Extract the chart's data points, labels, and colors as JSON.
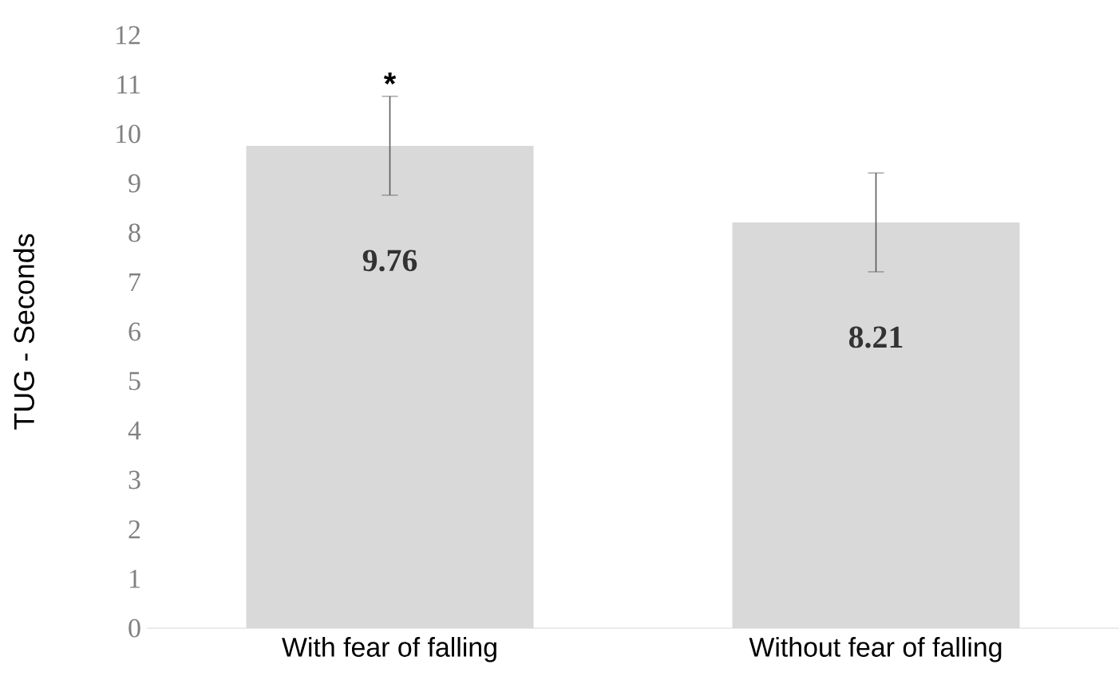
{
  "chart_data": {
    "type": "bar",
    "ylabel": "TUG - Seconds",
    "categories": [
      "With fear of falling",
      "Without fear of falling"
    ],
    "values": [
      9.76,
      8.21
    ],
    "color": "#d9d9d9",
    "errors": [
      1.0,
      1.0
    ],
    "value_labels": [
      "9.76",
      "8.21"
    ],
    "ylim": [
      0,
      12
    ],
    "yticks": [
      0,
      1,
      2,
      3,
      4,
      5,
      6,
      7,
      8,
      9,
      10,
      11,
      12
    ],
    "annotations": [
      {
        "text": "*",
        "x": "With fear of falling",
        "y": 10.76
      }
    ],
    "grid": false
  }
}
